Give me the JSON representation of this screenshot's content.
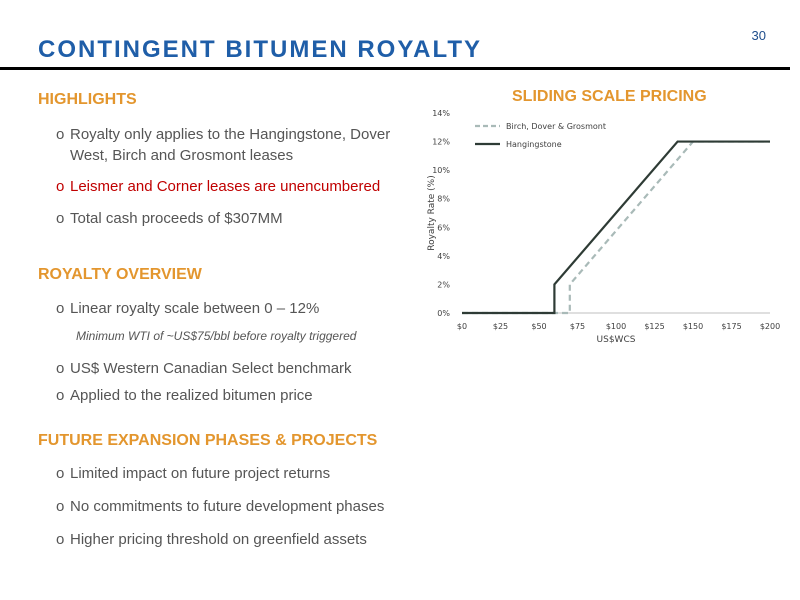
{
  "page_number": "30",
  "title": "CONTINGENT BITUMEN ROYALTY",
  "highlights": {
    "heading": "HIGHLIGHTS",
    "items": [
      "Royalty only applies to the Hangingstone, Dover West, Birch and Grosmont leases",
      "Leismer and Corner leases are unencumbered",
      "Total cash proceeds of $307MM"
    ]
  },
  "overview": {
    "heading": "ROYALTY OVERVIEW",
    "items": [
      "Linear royalty scale between 0 – 12%",
      "US$ Western Canadian Select benchmark",
      "Applied to the realized bitumen price"
    ],
    "note": "Minimum WTI of ~US$75/bbl before royalty triggered"
  },
  "expansion": {
    "heading": "FUTURE EXPANSION PHASES & PROJECTS",
    "items": [
      "Limited impact on future project returns",
      "No commitments to future development phases",
      "Higher pricing threshold on greenfield assets"
    ]
  },
  "bullet_marker": "o",
  "colors": {
    "title": "#1f5ea8",
    "heading": "#e3962e",
    "highlight": "#c00000",
    "series_hangingstone": "#2e3b35",
    "series_birch": "#a9bab8"
  },
  "chart_data": {
    "type": "line",
    "title": "SLIDING SCALE PRICING",
    "xlabel": "US$WCS",
    "ylabel": "Royalty Rate (%)",
    "xlim": [
      0,
      200
    ],
    "ylim": [
      0,
      14
    ],
    "x_ticks": [
      0,
      25,
      50,
      75,
      100,
      125,
      150,
      175,
      200
    ],
    "x_tick_labels": [
      "$0",
      "$25",
      "$50",
      "$75",
      "$100",
      "$125",
      "$150",
      "$175",
      "$200"
    ],
    "y_ticks": [
      0,
      2,
      4,
      6,
      8,
      10,
      12,
      14
    ],
    "y_tick_labels": [
      "0%",
      "2%",
      "4%",
      "6%",
      "8%",
      "10%",
      "12%",
      "14%"
    ],
    "legend_position": "top-left",
    "series": [
      {
        "name": "Birch, Dover & Grosmont",
        "style": "dashed",
        "points": [
          [
            0,
            0
          ],
          [
            70,
            0
          ],
          [
            70,
            2
          ],
          [
            150,
            12
          ],
          [
            200,
            12
          ]
        ]
      },
      {
        "name": "Hangingstone",
        "style": "solid",
        "points": [
          [
            0,
            0
          ],
          [
            60,
            0
          ],
          [
            60,
            2
          ],
          [
            140,
            12
          ],
          [
            200,
            12
          ]
        ]
      }
    ]
  }
}
